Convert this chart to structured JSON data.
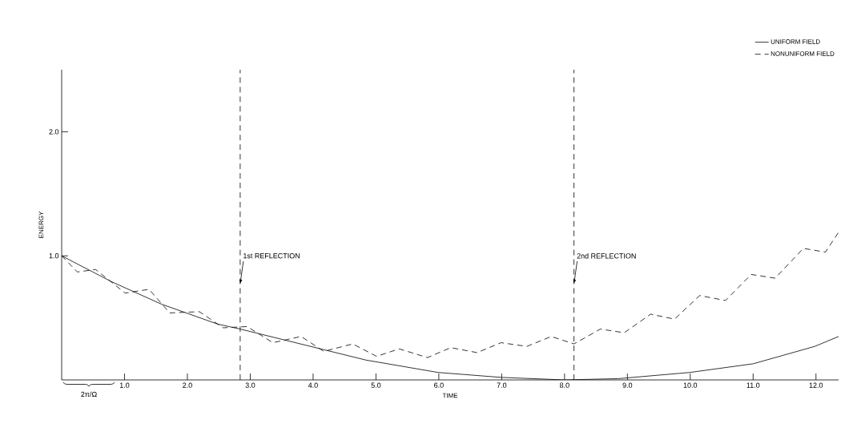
{
  "chart_data": {
    "type": "line",
    "xlabel": "TIME",
    "ylabel": "ENERGY",
    "xlim": [
      0,
      12.36
    ],
    "ylim": [
      0,
      2.5
    ],
    "xticks": [
      {
        "value": 1,
        "label": "1.0"
      },
      {
        "value": 2,
        "label": "2.0"
      },
      {
        "value": 3,
        "label": "3.0"
      },
      {
        "value": 4,
        "label": "4.0"
      },
      {
        "value": 5,
        "label": "5.0"
      },
      {
        "value": 6,
        "label": "6.0"
      },
      {
        "value": 7,
        "label": "7.0"
      },
      {
        "value": 8,
        "label": "8.0"
      },
      {
        "value": 9,
        "label": "9.0"
      },
      {
        "value": 10,
        "label": "10.0"
      },
      {
        "value": 11,
        "label": "11.0"
      },
      {
        "value": 12,
        "label": "12.0"
      }
    ],
    "yticks": [
      {
        "value": 1,
        "label": "1.0"
      },
      {
        "value": 2,
        "label": "2.0"
      }
    ],
    "legend": "top right",
    "grid": false,
    "marker": "none",
    "series": [
      {
        "name": "UNIFORM FIELD",
        "color": "#000000",
        "line_style": "solid",
        "x": [
          0,
          0.8,
          1.59,
          2.48,
          2.84,
          4.12,
          4.84,
          5.99,
          7.0,
          8.0,
          8.85,
          9.99,
          11.0,
          11.98,
          12.36
        ],
        "values": [
          1.0,
          0.79,
          0.61,
          0.45,
          0.41,
          0.25,
          0.16,
          0.06,
          0.02,
          0.0,
          0.01,
          0.06,
          0.13,
          0.27,
          0.35
        ]
      },
      {
        "name": "NONUNIFORM FIELD",
        "color": "#000000",
        "line_style": "dashed",
        "x": [
          0,
          0.25,
          0.54,
          1.01,
          1.39,
          1.72,
          2.19,
          2.57,
          2.95,
          3.36,
          3.81,
          4.17,
          4.63,
          5.01,
          5.37,
          5.82,
          6.19,
          6.61,
          6.99,
          7.4,
          7.79,
          8.15,
          8.57,
          8.95,
          9.37,
          9.75,
          10.15,
          10.56,
          10.97,
          11.35,
          11.8,
          12.15,
          12.36
        ],
        "values": [
          1.0,
          0.87,
          0.89,
          0.7,
          0.73,
          0.54,
          0.55,
          0.42,
          0.43,
          0.3,
          0.35,
          0.23,
          0.29,
          0.19,
          0.25,
          0.18,
          0.26,
          0.22,
          0.3,
          0.27,
          0.35,
          0.29,
          0.41,
          0.38,
          0.53,
          0.49,
          0.68,
          0.64,
          0.85,
          0.82,
          1.06,
          1.03,
          1.19
        ]
      }
    ],
    "ref_lines": [
      {
        "axis": "x",
        "value": 2.84,
        "label": "1st REFLECTION",
        "line_style": "dashed"
      },
      {
        "axis": "x",
        "value": 8.15,
        "label": "2nd REFLECTION",
        "line_style": "dashed"
      }
    ],
    "annotations": [
      "2π/Ω"
    ]
  }
}
